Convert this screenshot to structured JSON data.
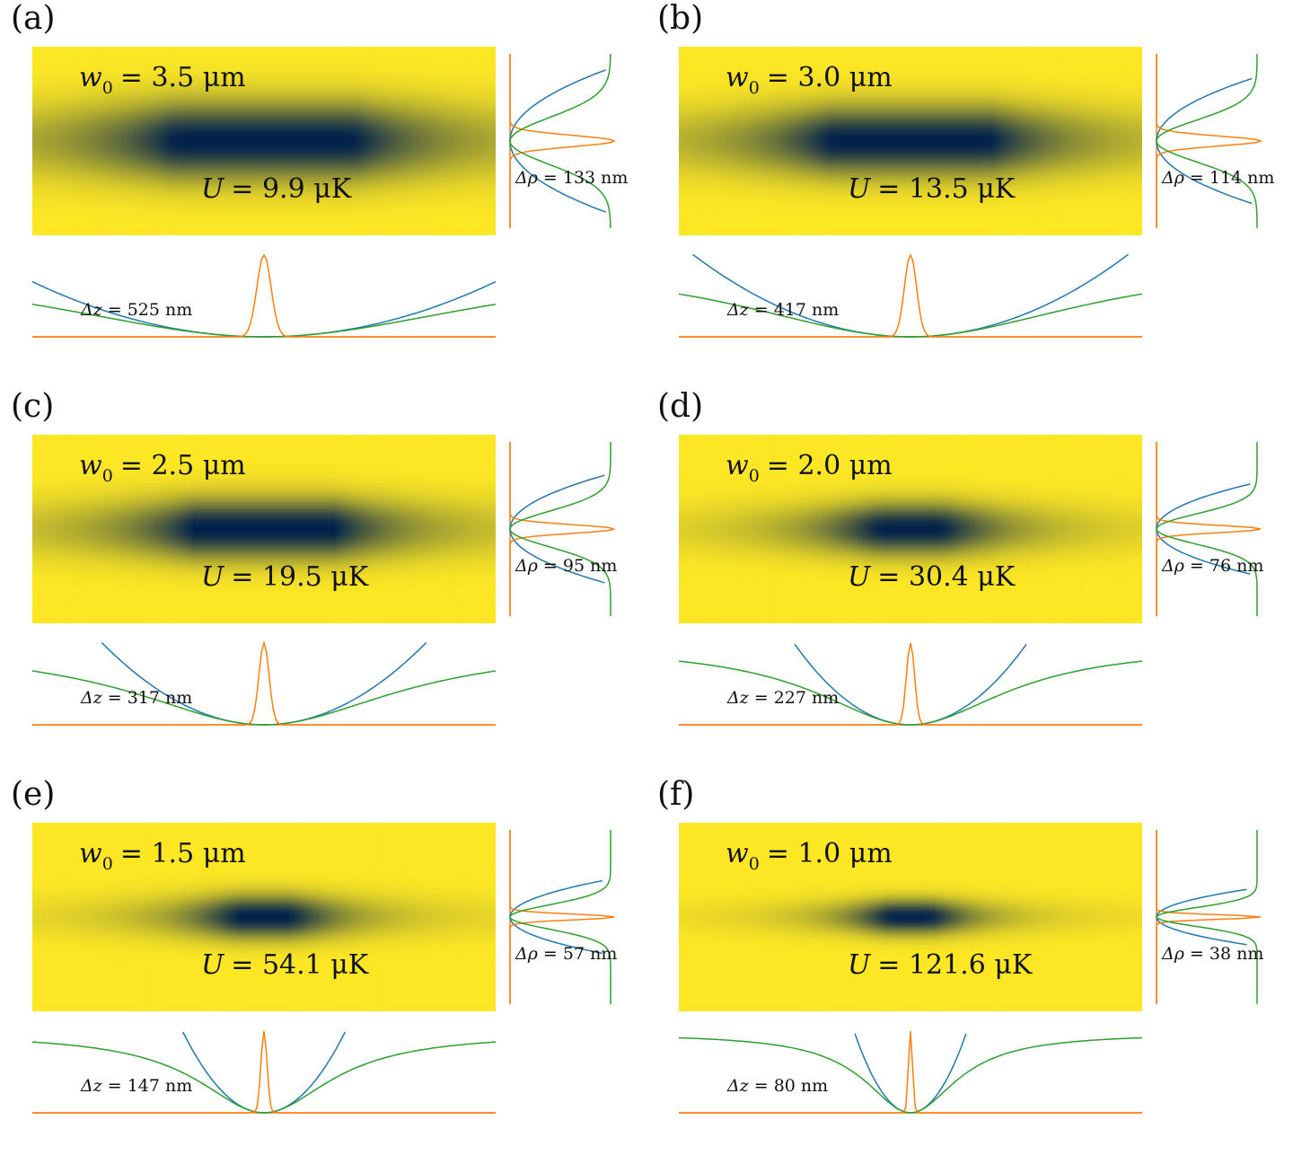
{
  "colors": {
    "background_yellow": "#fde725",
    "trap_core": "#00204c",
    "potential_harmonic": "#1f77b4",
    "wavefunction": "#ff7f0e",
    "potential_exact": "#2ca02c"
  },
  "chart_data": [
    {
      "type": "heatmap",
      "label": "(a)",
      "w0_prefix": "w",
      "w0_sub": "0",
      "w0_text": "= 3.5 μm",
      "U_prefix": "U",
      "U_text": "= 9.9 μK",
      "drho_prefix": "Δρ",
      "drho_text": "= 133 nm",
      "dz_prefix": "Δz",
      "dz_text": "= 525 nm",
      "w0_um": 3.5,
      "U_uK": 9.9,
      "drho_nm": 133,
      "dz_nm": 525
    },
    {
      "type": "heatmap",
      "label": "(b)",
      "w0_prefix": "w",
      "w0_sub": "0",
      "w0_text": "= 3.0 μm",
      "U_prefix": "U",
      "U_text": "= 13.5 μK",
      "drho_prefix": "Δρ",
      "drho_text": "= 114 nm",
      "dz_prefix": "Δz",
      "dz_text": "= 417 nm",
      "w0_um": 3.0,
      "U_uK": 13.5,
      "drho_nm": 114,
      "dz_nm": 417
    },
    {
      "type": "heatmap",
      "label": "(c)",
      "w0_prefix": "w",
      "w0_sub": "0",
      "w0_text": "= 2.5 μm",
      "U_prefix": "U",
      "U_text": "= 19.5 μK",
      "drho_prefix": "Δρ",
      "drho_text": "= 95 nm",
      "dz_prefix": "Δz",
      "dz_text": "= 317 nm",
      "w0_um": 2.5,
      "U_uK": 19.5,
      "drho_nm": 95,
      "dz_nm": 317
    },
    {
      "type": "heatmap",
      "label": "(d)",
      "w0_prefix": "w",
      "w0_sub": "0",
      "w0_text": "= 2.0 μm",
      "U_prefix": "U",
      "U_text": "= 30.4 μK",
      "drho_prefix": "Δρ",
      "drho_text": "= 76 nm",
      "dz_prefix": "Δz",
      "dz_text": "= 227 nm",
      "w0_um": 2.0,
      "U_uK": 30.4,
      "drho_nm": 76,
      "dz_nm": 227
    },
    {
      "type": "heatmap",
      "label": "(e)",
      "w0_prefix": "w",
      "w0_sub": "0",
      "w0_text": "= 1.5 μm",
      "U_prefix": "U",
      "U_text": "= 54.1 μK",
      "drho_prefix": "Δρ",
      "drho_text": "= 57 nm",
      "dz_prefix": "Δz",
      "dz_text": "= 147 nm",
      "w0_um": 1.5,
      "U_uK": 54.1,
      "drho_nm": 57,
      "dz_nm": 147
    },
    {
      "type": "heatmap",
      "label": "(f)",
      "w0_prefix": "w",
      "w0_sub": "0",
      "w0_text": "= 1.0 μm",
      "U_prefix": "U",
      "U_text": "= 121.6 μK",
      "drho_prefix": "Δρ",
      "drho_text": "= 38 nm",
      "dz_prefix": "Δz",
      "dz_text": "= 80 nm",
      "w0_um": 1.0,
      "U_uK": 121.6,
      "drho_nm": 38,
      "dz_nm": 80
    }
  ]
}
